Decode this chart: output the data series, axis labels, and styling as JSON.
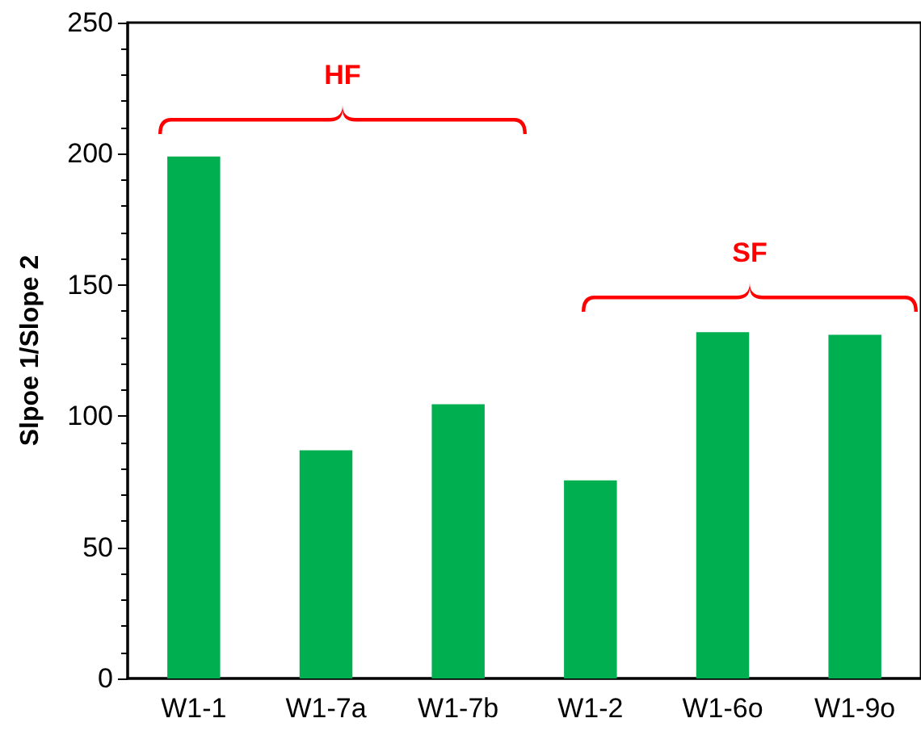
{
  "chart_data": {
    "type": "bar",
    "ylabel": "Slpoe 1/Slope 2",
    "categories": [
      "W1-1",
      "W1-7a",
      "W1-7b",
      "W1-2",
      "W1-6o",
      "W1-9o"
    ],
    "values": [
      199,
      87,
      104.5,
      75.5,
      132,
      131
    ],
    "color": "#00b050",
    "ylim": [
      0,
      250
    ],
    "yticks": [
      0,
      50,
      100,
      150,
      200,
      250
    ],
    "annotations": [
      "HF",
      "SF"
    ]
  }
}
